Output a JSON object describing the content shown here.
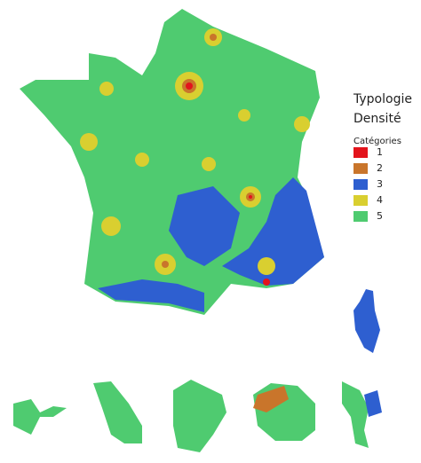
{
  "legend": {
    "title": [
      "Typologie",
      "Densité"
    ],
    "subtitle": "Catégories",
    "items": [
      {
        "label": "1",
        "color": "#e3141c"
      },
      {
        "label": "2",
        "color": "#c9752b"
      },
      {
        "label": "3",
        "color": "#2e5fd0"
      },
      {
        "label": "4",
        "color": "#d9cf30"
      },
      {
        "label": "5",
        "color": "#4fcb70"
      }
    ]
  }
}
